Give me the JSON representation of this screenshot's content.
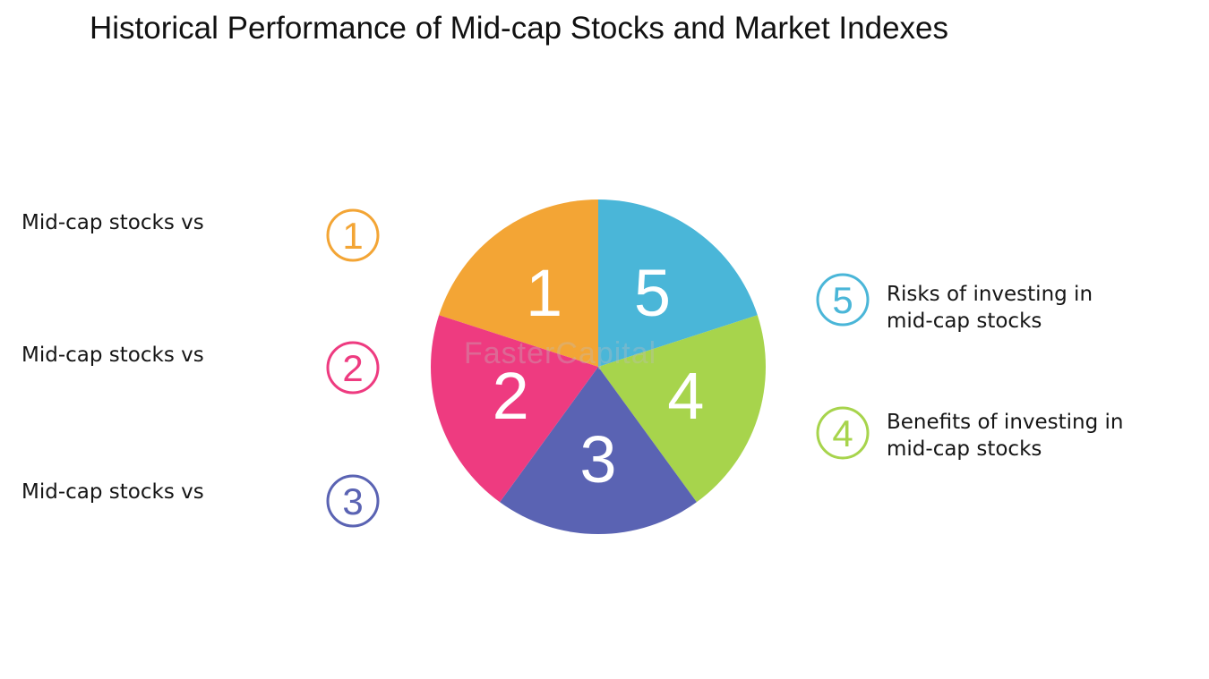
{
  "title": "Historical Performance of Mid-cap Stocks and Market Indexes",
  "watermark": "FasterCapital",
  "segments": [
    {
      "number": "1",
      "color": "#f3a535"
    },
    {
      "number": "5",
      "color": "#4ab6d8"
    },
    {
      "number": "4",
      "color": "#a7d44c"
    },
    {
      "number": "3",
      "color": "#5a63b3"
    },
    {
      "number": "2",
      "color": "#ee3b80"
    }
  ],
  "items": [
    {
      "number": "1",
      "line1": "Mid-cap stocks vs",
      "line2": "",
      "color": "#f3a535"
    },
    {
      "number": "2",
      "line1": "Mid-cap stocks vs",
      "line2": "",
      "color": "#ee3b80"
    },
    {
      "number": "3",
      "line1": "Mid-cap stocks vs",
      "line2": "",
      "color": "#5a63b3"
    },
    {
      "number": "5",
      "line1": "Risks of investing in",
      "line2": "mid-cap stocks",
      "color": "#4ab6d8"
    },
    {
      "number": "4",
      "line1": "Benefits of investing in",
      "line2": "mid-cap stocks",
      "color": "#a7d44c"
    }
  ]
}
